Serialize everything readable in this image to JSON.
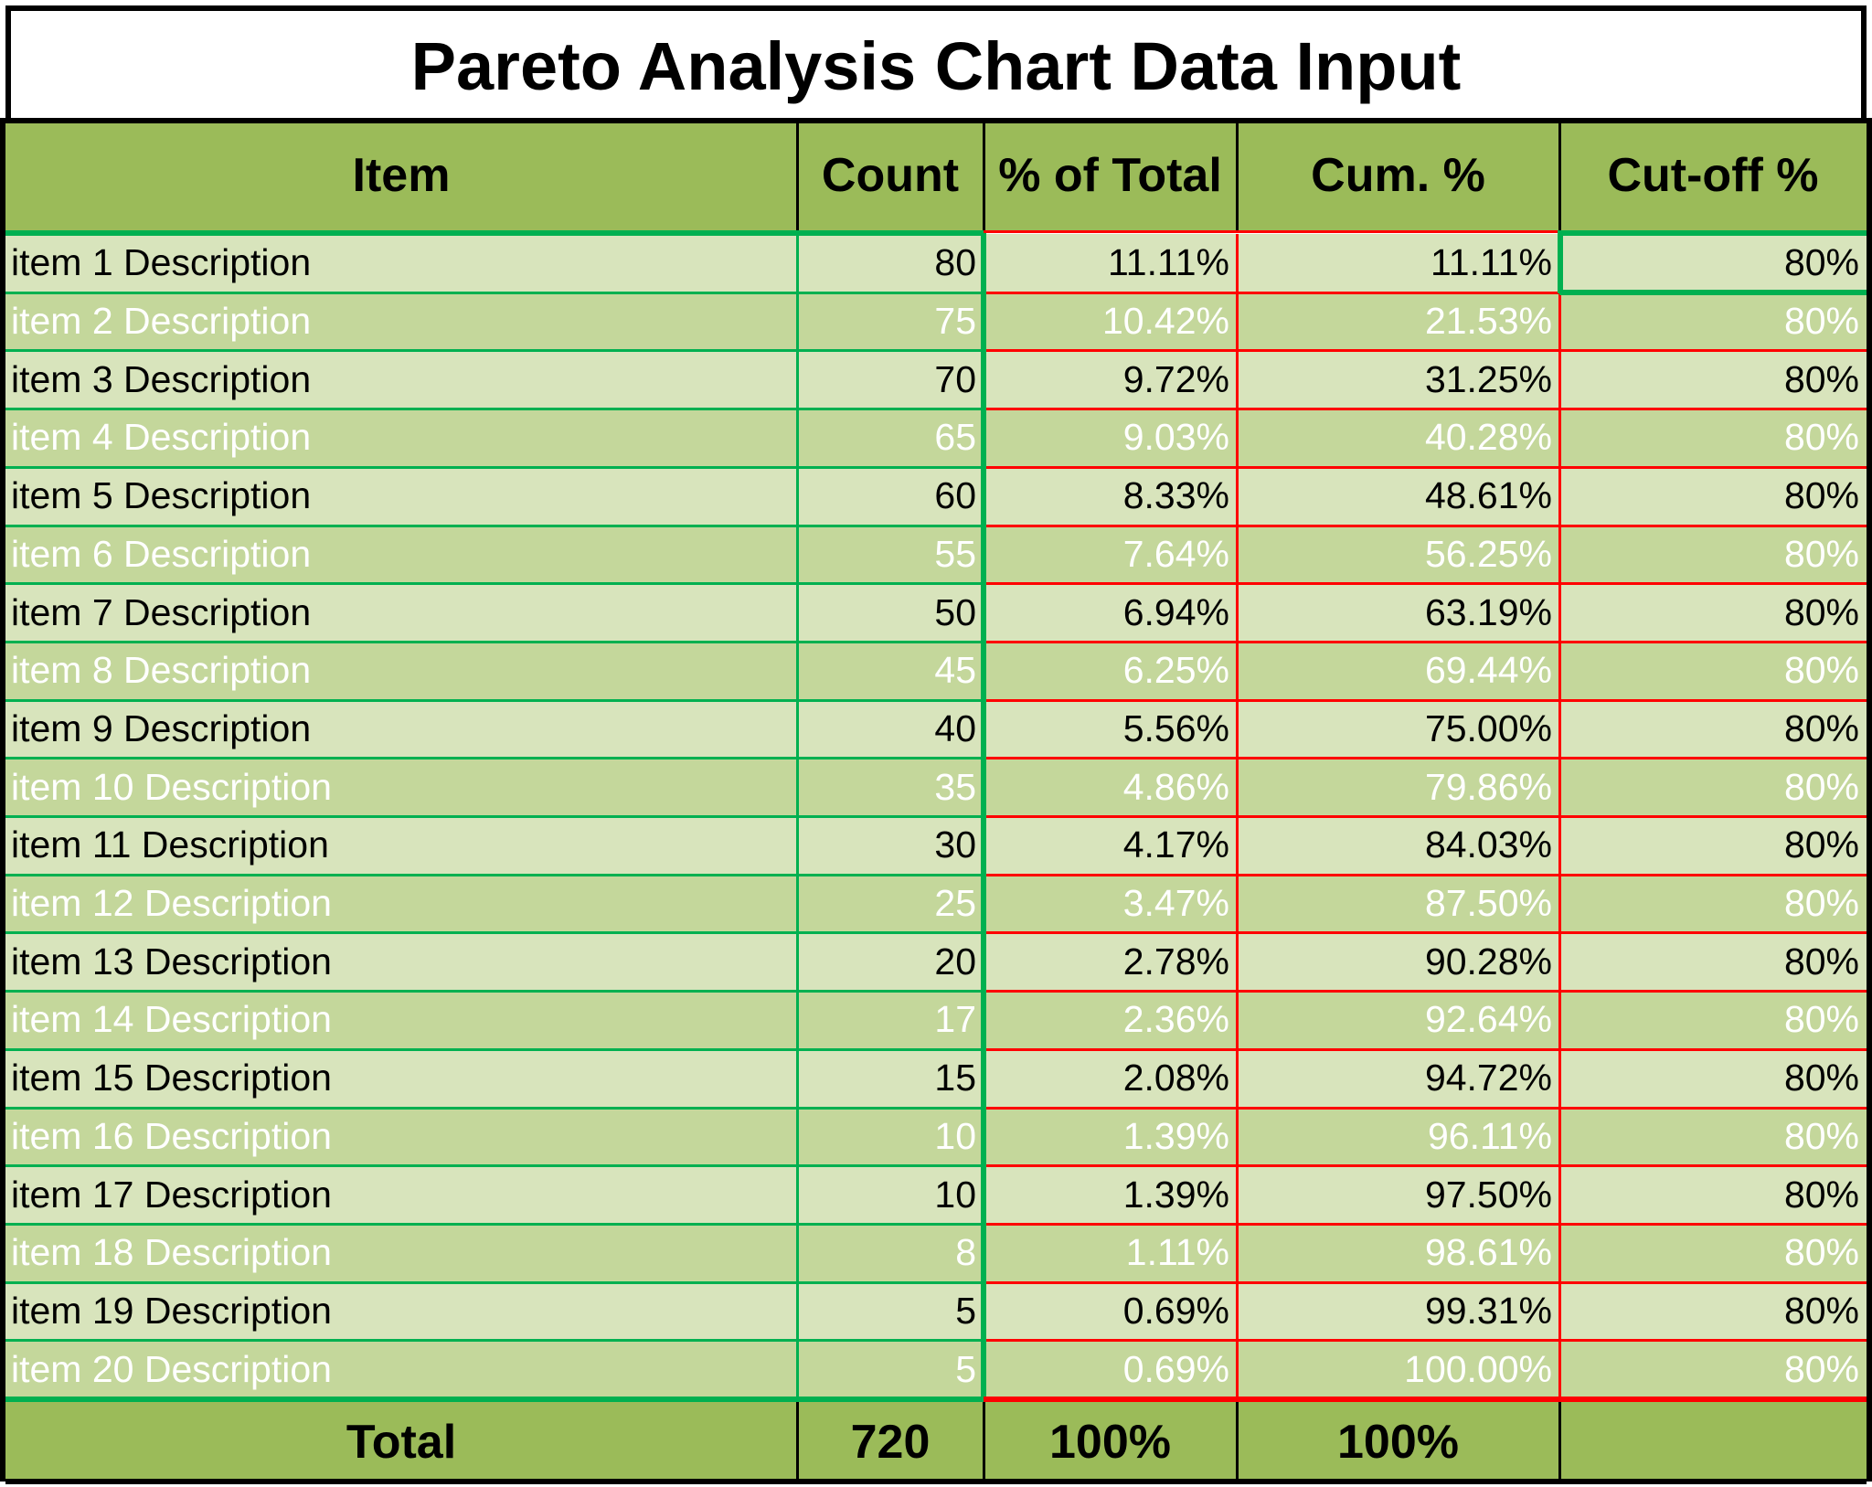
{
  "chart_data": {
    "type": "table",
    "title": "Pareto Analysis Chart Data Input",
    "columns": [
      "Item",
      "Count",
      "% of Total",
      "Cum. %",
      "Cut-off %"
    ],
    "rows": [
      [
        "item 1 Description",
        "80",
        "11.11%",
        "11.11%",
        "80%"
      ],
      [
        "item 2 Description",
        "75",
        "10.42%",
        "21.53%",
        "80%"
      ],
      [
        "item 3 Description",
        "70",
        "9.72%",
        "31.25%",
        "80%"
      ],
      [
        "item 4 Description",
        "65",
        "9.03%",
        "40.28%",
        "80%"
      ],
      [
        "item 5 Description",
        "60",
        "8.33%",
        "48.61%",
        "80%"
      ],
      [
        "item 6 Description",
        "55",
        "7.64%",
        "56.25%",
        "80%"
      ],
      [
        "item 7 Description",
        "50",
        "6.94%",
        "63.19%",
        "80%"
      ],
      [
        "item 8 Description",
        "45",
        "6.25%",
        "69.44%",
        "80%"
      ],
      [
        "item 9 Description",
        "40",
        "5.56%",
        "75.00%",
        "80%"
      ],
      [
        "item 10 Description",
        "35",
        "4.86%",
        "79.86%",
        "80%"
      ],
      [
        "item 11 Description",
        "30",
        "4.17%",
        "84.03%",
        "80%"
      ],
      [
        "item 12 Description",
        "25",
        "3.47%",
        "87.50%",
        "80%"
      ],
      [
        "item 13 Description",
        "20",
        "2.78%",
        "90.28%",
        "80%"
      ],
      [
        "item 14 Description",
        "17",
        "2.36%",
        "92.64%",
        "80%"
      ],
      [
        "item 15 Description",
        "15",
        "2.08%",
        "94.72%",
        "80%"
      ],
      [
        "item 16 Description",
        "10",
        "1.39%",
        "96.11%",
        "80%"
      ],
      [
        "item 17 Description",
        "10",
        "1.39%",
        "97.50%",
        "80%"
      ],
      [
        "item 18 Description",
        "8",
        "1.11%",
        "98.61%",
        "80%"
      ],
      [
        "item 19 Description",
        "5",
        "0.69%",
        "99.31%",
        "80%"
      ],
      [
        "item 20 Description",
        "5",
        "0.69%",
        "100.00%",
        "80%"
      ]
    ],
    "totals": [
      "Total",
      "720",
      "100%",
      "100%",
      ""
    ]
  },
  "colors": {
    "header_fill": "#9bbb59",
    "row_light": "#d8e4bc",
    "row_dark": "#c4d79b",
    "input_border": "#00b050",
    "calc_border": "#ff0000",
    "outline": "#000000"
  }
}
